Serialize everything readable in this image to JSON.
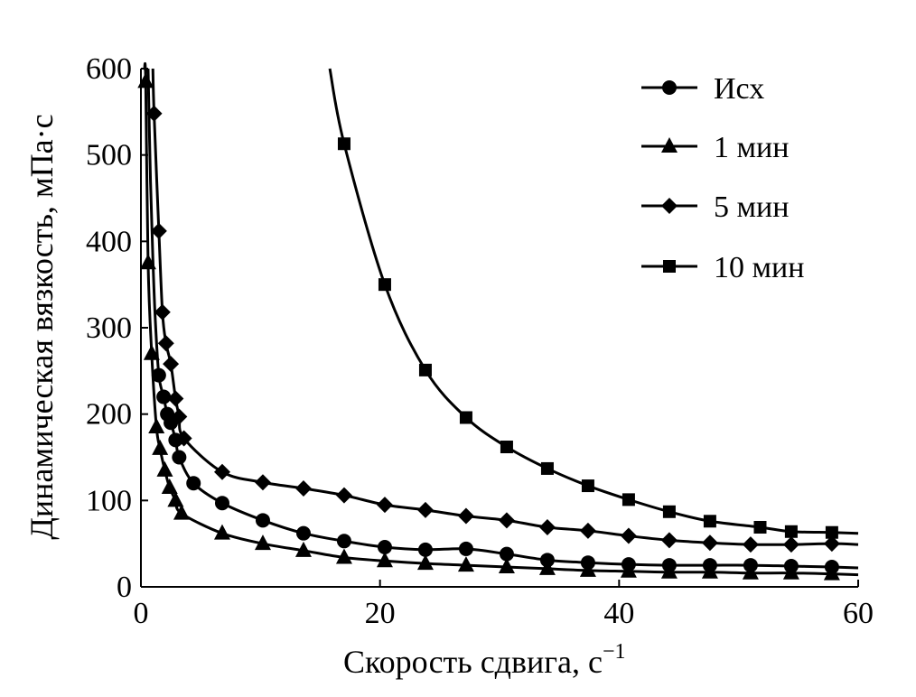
{
  "chart_data": {
    "type": "line",
    "title": "",
    "xlabel": "Скорость сдвига, с",
    "xlabel_sup": "−1",
    "ylabel": "Динамическая вязкость, мПа·с",
    "xlim": [
      0,
      60
    ],
    "ylim": [
      0,
      600
    ],
    "xticks": [
      0,
      20,
      40,
      60
    ],
    "yticks": [
      0,
      100,
      200,
      300,
      400,
      500,
      600
    ],
    "grid": false,
    "legend_position": "top-right",
    "series": [
      {
        "name": "Исх",
        "marker": "circle",
        "x": [
          1.5,
          1.9,
          2.2,
          2.5,
          2.9,
          3.2,
          4.4,
          6.8,
          10.2,
          13.6,
          17.0,
          20.4,
          23.8,
          27.2,
          30.6,
          34.0,
          37.4,
          40.8,
          44.2,
          47.6,
          51.0,
          54.4,
          57.8
        ],
        "y": [
          245,
          220,
          200,
          190,
          170,
          150,
          120,
          97,
          77,
          62,
          53,
          46,
          43,
          44,
          38,
          31,
          28,
          26,
          25,
          25,
          25,
          24,
          23
        ],
        "curve_x": [
          0.6,
          0.8,
          1.0,
          1.2,
          1.5,
          1.9,
          2.2,
          2.5,
          2.9,
          3.2,
          4.4,
          6.8,
          10.2,
          13.6,
          17.0,
          20.4,
          23.8,
          27.2,
          30.6,
          34.0,
          37.4,
          40.8,
          44.2,
          47.6,
          51.0,
          54.4,
          57.8,
          60
        ],
        "curve_y": [
          600,
          470,
          380,
          310,
          245,
          220,
          200,
          190,
          170,
          150,
          120,
          97,
          77,
          62,
          53,
          46,
          43,
          44,
          38,
          31,
          28,
          26,
          25,
          25,
          25,
          24,
          23,
          22
        ]
      },
      {
        "name": "1 мин",
        "marker": "triangle",
        "x": [
          0.4,
          0.6,
          0.9,
          1.3,
          1.6,
          2.0,
          2.4,
          2.9,
          3.4,
          6.8,
          10.2,
          13.6,
          17.0,
          20.4,
          23.8,
          27.2,
          30.6,
          34.0,
          37.4,
          40.8,
          44.2,
          47.6,
          51.0,
          54.4,
          57.8
        ],
        "y": [
          585,
          375,
          270,
          185,
          160,
          135,
          115,
          100,
          85,
          62,
          50,
          42,
          34,
          30,
          27,
          25,
          23,
          21,
          19,
          18,
          17,
          17,
          16,
          16,
          15
        ],
        "curve_x": [
          0.3,
          0.4,
          0.6,
          0.9,
          1.3,
          1.6,
          2.0,
          2.4,
          2.9,
          3.4,
          6.8,
          10.2,
          13.6,
          17.0,
          20.4,
          23.8,
          27.2,
          30.6,
          34.0,
          37.4,
          40.8,
          44.2,
          47.6,
          51.0,
          54.4,
          57.8,
          60
        ],
        "curve_y": [
          600,
          585,
          375,
          270,
          185,
          160,
          135,
          115,
          100,
          85,
          62,
          50,
          42,
          34,
          30,
          27,
          25,
          23,
          21,
          19,
          18,
          17,
          17,
          16,
          16,
          15,
          14
        ]
      },
      {
        "name": "5 мин",
        "marker": "diamond",
        "x": [
          1.1,
          1.5,
          1.8,
          2.1,
          2.5,
          2.9,
          3.2,
          3.6,
          6.8,
          10.2,
          13.6,
          17.0,
          20.4,
          23.8,
          27.2,
          30.6,
          34.0,
          37.4,
          40.8,
          44.2,
          47.6,
          51.0,
          54.4,
          57.8
        ],
        "y": [
          548,
          412,
          318,
          282,
          258,
          218,
          197,
          172,
          133,
          121,
          114,
          106,
          95,
          89,
          82,
          77,
          69,
          65,
          59,
          54,
          51,
          49,
          49,
          50
        ],
        "curve_x": [
          1.0,
          1.1,
          1.5,
          1.8,
          2.1,
          2.5,
          2.9,
          3.2,
          3.6,
          6.8,
          10.2,
          13.6,
          17.0,
          20.4,
          23.8,
          27.2,
          30.6,
          34.0,
          37.4,
          40.8,
          44.2,
          47.6,
          51.0,
          54.4,
          57.8,
          60
        ],
        "curve_y": [
          600,
          548,
          412,
          318,
          282,
          258,
          218,
          197,
          172,
          133,
          121,
          114,
          106,
          95,
          89,
          82,
          77,
          69,
          65,
          59,
          54,
          51,
          49,
          49,
          50,
          49
        ]
      },
      {
        "name": "10 мин",
        "marker": "square",
        "x": [
          17.0,
          20.4,
          23.8,
          27.2,
          30.6,
          34.0,
          37.4,
          40.8,
          44.2,
          47.6,
          51.8,
          54.4,
          57.8
        ],
        "y": [
          513,
          350,
          251,
          196,
          162,
          137,
          117,
          101,
          87,
          76,
          69,
          64,
          63
        ],
        "curve_x": [
          15.8,
          17.0,
          20.4,
          23.8,
          27.2,
          30.6,
          34.0,
          37.4,
          40.8,
          44.2,
          47.6,
          51.8,
          54.4,
          57.8,
          60
        ],
        "curve_y": [
          600,
          513,
          350,
          251,
          196,
          162,
          137,
          117,
          101,
          87,
          76,
          69,
          64,
          63,
          62
        ]
      }
    ]
  }
}
